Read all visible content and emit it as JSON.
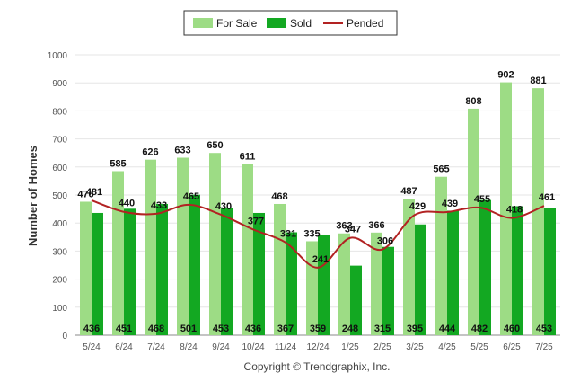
{
  "chart_data": {
    "type": "bar",
    "categories": [
      "5/24",
      "6/24",
      "7/24",
      "8/24",
      "9/24",
      "10/24",
      "11/24",
      "12/24",
      "1/25",
      "2/25",
      "3/25",
      "4/25",
      "5/25",
      "6/25",
      "7/25"
    ],
    "series": [
      {
        "name": "For Sale",
        "kind": "bar",
        "color": "#9ddc85",
        "values": [
          476,
          585,
          626,
          633,
          650,
          611,
          468,
          335,
          363,
          366,
          487,
          565,
          808,
          902,
          881
        ]
      },
      {
        "name": "Sold",
        "kind": "bar",
        "color": "#13a822",
        "values": [
          436,
          451,
          468,
          501,
          453,
          436,
          367,
          359,
          248,
          315,
          395,
          444,
          482,
          460,
          453
        ]
      },
      {
        "name": "Pended",
        "kind": "line",
        "color": "#b22222",
        "values": [
          481,
          440,
          433,
          465,
          430,
          377,
          331,
          241,
          347,
          306,
          429,
          439,
          455,
          418,
          461
        ]
      }
    ],
    "title": "",
    "xlabel": "",
    "ylabel": "Number of Homes",
    "ylim": [
      0,
      1000
    ],
    "yticks": [
      0,
      100,
      200,
      300,
      400,
      500,
      600,
      700,
      800,
      900,
      1000
    ],
    "grid": true,
    "legend": "top"
  },
  "legend": {
    "items": [
      {
        "label": "For Sale",
        "color": "#9ddc85",
        "shape": "square"
      },
      {
        "label": "Sold",
        "color": "#13a822",
        "shape": "square"
      },
      {
        "label": "Pended",
        "color": "#b22222",
        "shape": "line"
      }
    ]
  },
  "footer": {
    "copyright": "Copyright © Trendgraphix, Inc."
  }
}
